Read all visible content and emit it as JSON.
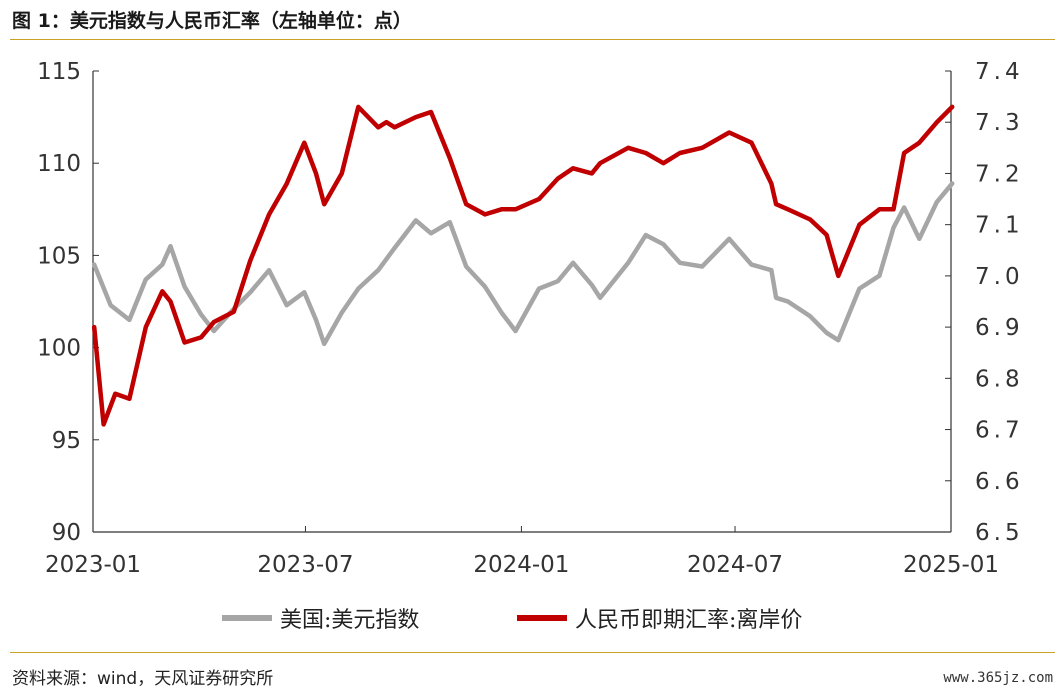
{
  "title": "图 1：美元指数与人民币汇率（左轴单位：点）",
  "source": "资料来源：wind，天风证券研究所",
  "watermark": "www.365jz.com",
  "colors": {
    "dxy": "#a6a6a6",
    "cny": "#c00000",
    "accent": "#c9a227"
  },
  "chart_data": {
    "type": "line",
    "title": "图 1：美元指数与人民币汇率（左轴单位：点）",
    "x_ticks": [
      "2023-01",
      "2023-07",
      "2024-01",
      "2024-07",
      "2025-01"
    ],
    "y_left_ticks": [
      "90",
      "95",
      "100",
      "105",
      "110",
      "115"
    ],
    "y_right_ticks": [
      "6.5",
      "6.6",
      "6.7",
      "6.8",
      "6.9",
      "7.0",
      "7.1",
      "7.2",
      "7.3",
      "7.4"
    ],
    "y_left_range": [
      90,
      115
    ],
    "y_right_range": [
      6.5,
      7.4
    ],
    "grid": false,
    "legend_position": "bottom",
    "series": [
      {
        "name": "美国:美元指数",
        "axis": "left",
        "x": [
          "2023-01-02",
          "2023-01-16",
          "2023-02-01",
          "2023-02-15",
          "2023-03-01",
          "2023-03-08",
          "2023-03-20",
          "2023-04-03",
          "2023-04-14",
          "2023-05-01",
          "2023-05-15",
          "2023-05-31",
          "2023-06-15",
          "2023-06-30",
          "2023-07-10",
          "2023-07-17",
          "2023-08-01",
          "2023-08-15",
          "2023-09-01",
          "2023-09-15",
          "2023-10-03",
          "2023-10-16",
          "2023-11-01",
          "2023-11-15",
          "2023-12-01",
          "2023-12-15",
          "2023-12-27",
          "2024-01-16",
          "2024-02-01",
          "2024-02-14",
          "2024-03-01",
          "2024-03-08",
          "2024-04-01",
          "2024-04-16",
          "2024-05-01",
          "2024-05-15",
          "2024-06-03",
          "2024-06-26",
          "2024-07-15",
          "2024-08-01",
          "2024-08-05",
          "2024-08-15",
          "2024-09-03",
          "2024-09-17",
          "2024-09-27",
          "2024-10-15",
          "2024-11-01",
          "2024-11-13",
          "2024-11-22",
          "2024-12-05",
          "2024-12-20",
          "2025-01-02"
        ],
        "y": [
          104.5,
          102.3,
          101.5,
          103.7,
          104.5,
          105.5,
          103.3,
          101.8,
          100.9,
          102.1,
          103.0,
          104.2,
          102.3,
          103.0,
          101.5,
          100.2,
          101.9,
          103.2,
          104.2,
          105.4,
          106.9,
          106.2,
          106.8,
          104.4,
          103.3,
          101.9,
          100.9,
          103.2,
          103.6,
          104.6,
          103.4,
          102.7,
          104.6,
          106.1,
          105.6,
          104.6,
          104.4,
          105.9,
          104.5,
          104.2,
          102.7,
          102.5,
          101.7,
          100.8,
          100.4,
          103.2,
          103.9,
          106.5,
          107.6,
          105.9,
          107.9,
          108.9
        ]
      },
      {
        "name": "人民币即期汇率:离岸价",
        "axis": "right",
        "x": [
          "2023-01-02",
          "2023-01-10",
          "2023-01-20",
          "2023-02-01",
          "2023-02-15",
          "2023-03-01",
          "2023-03-08",
          "2023-03-20",
          "2023-04-03",
          "2023-04-14",
          "2023-05-01",
          "2023-05-15",
          "2023-05-31",
          "2023-06-15",
          "2023-06-30",
          "2023-07-10",
          "2023-07-17",
          "2023-08-01",
          "2023-08-15",
          "2023-09-01",
          "2023-09-08",
          "2023-09-15",
          "2023-10-03",
          "2023-10-16",
          "2023-11-01",
          "2023-11-15",
          "2023-12-01",
          "2023-12-15",
          "2023-12-27",
          "2024-01-16",
          "2024-02-01",
          "2024-02-14",
          "2024-03-01",
          "2024-03-08",
          "2024-04-01",
          "2024-04-16",
          "2024-05-01",
          "2024-05-15",
          "2024-06-03",
          "2024-06-26",
          "2024-07-15",
          "2024-08-01",
          "2024-08-05",
          "2024-08-15",
          "2024-09-03",
          "2024-09-17",
          "2024-09-27",
          "2024-10-15",
          "2024-11-01",
          "2024-11-13",
          "2024-11-22",
          "2024-12-05",
          "2024-12-20",
          "2025-01-02"
        ],
        "y": [
          6.9,
          6.71,
          6.77,
          6.76,
          6.9,
          6.97,
          6.95,
          6.87,
          6.88,
          6.91,
          6.93,
          7.03,
          7.12,
          7.18,
          7.26,
          7.2,
          7.14,
          7.2,
          7.33,
          7.29,
          7.3,
          7.29,
          7.31,
          7.32,
          7.23,
          7.14,
          7.12,
          7.13,
          7.13,
          7.15,
          7.19,
          7.21,
          7.2,
          7.22,
          7.25,
          7.24,
          7.22,
          7.24,
          7.25,
          7.28,
          7.26,
          7.18,
          7.14,
          7.13,
          7.11,
          7.08,
          7.0,
          7.1,
          7.13,
          7.13,
          7.24,
          7.26,
          7.3,
          7.33
        ]
      }
    ]
  },
  "legend": {
    "items": [
      {
        "label": "美国:美元指数",
        "color": "#a6a6a6"
      },
      {
        "label": "人民币即期汇率:离岸价",
        "color": "#c00000"
      }
    ]
  }
}
